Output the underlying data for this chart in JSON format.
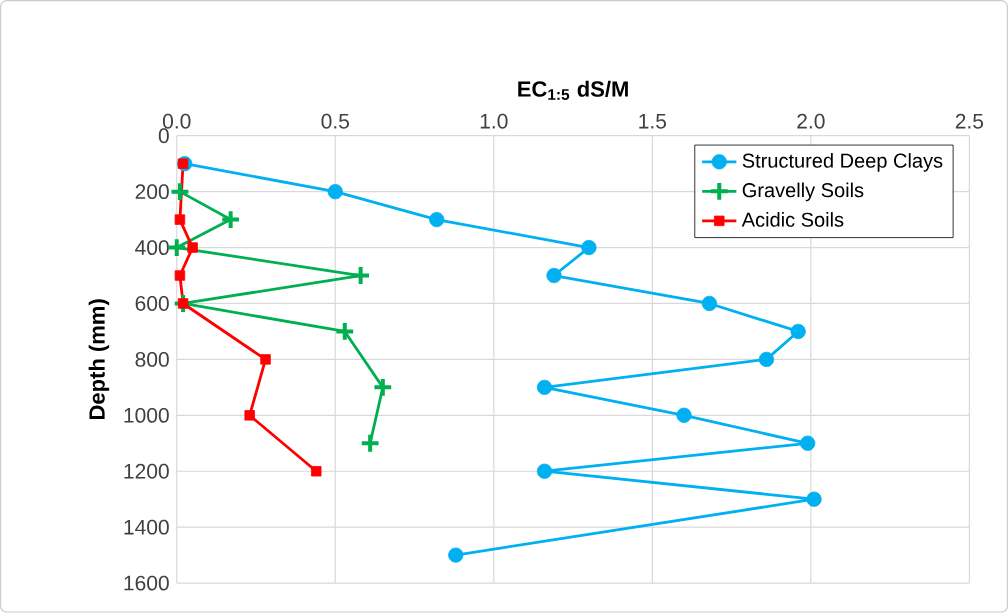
{
  "chart_data": {
    "type": "line",
    "xlabel": "EC$_{1:5}$ dS/M",
    "ylabel": "Depth (mm)",
    "xlim": [
      0,
      2.5
    ],
    "ylim": [
      1600,
      0
    ],
    "xticks": [
      {
        "value": 0,
        "label": "0.0"
      },
      0.5,
      {
        "value": 1,
        "label": "1.0"
      },
      1.5,
      {
        "value": 2,
        "label": "2.0"
      },
      2.5
    ],
    "yticks": [
      0,
      200,
      400,
      600,
      800,
      1000,
      1200,
      1400,
      1600
    ],
    "grid": true,
    "legend": "top right",
    "line_style": "solid",
    "series": [
      {
        "name": "Structured Deep Clays",
        "color": "#00b0f0",
        "marker": "circle",
        "x": [
          0.025,
          0.5,
          0.82,
          1.3,
          1.19,
          1.68,
          1.96,
          1.86,
          1.16,
          1.6,
          1.99,
          1.16,
          2.01,
          0.88
        ],
        "values": [
          100,
          200,
          300,
          400,
          500,
          600,
          700,
          800,
          900,
          1000,
          1100,
          1200,
          1300,
          1500
        ]
      },
      {
        "name": "Gravelly Soils",
        "color": "#00b050",
        "marker": "cross",
        "x": [
          0.01,
          0.17,
          0.0,
          0.58,
          0.02,
          0.53,
          0.65,
          0.61
        ],
        "values": [
          200,
          300,
          400,
          500,
          600,
          700,
          900,
          1100
        ]
      },
      {
        "name": "Acidic Soils",
        "color": "#ff0000",
        "marker": "square",
        "x": [
          0.02,
          0.01,
          0.05,
          0.01,
          0.02,
          0.28,
          0.23,
          0.44
        ],
        "values": [
          100,
          300,
          400,
          500,
          600,
          800,
          1000,
          1200
        ]
      }
    ]
  }
}
